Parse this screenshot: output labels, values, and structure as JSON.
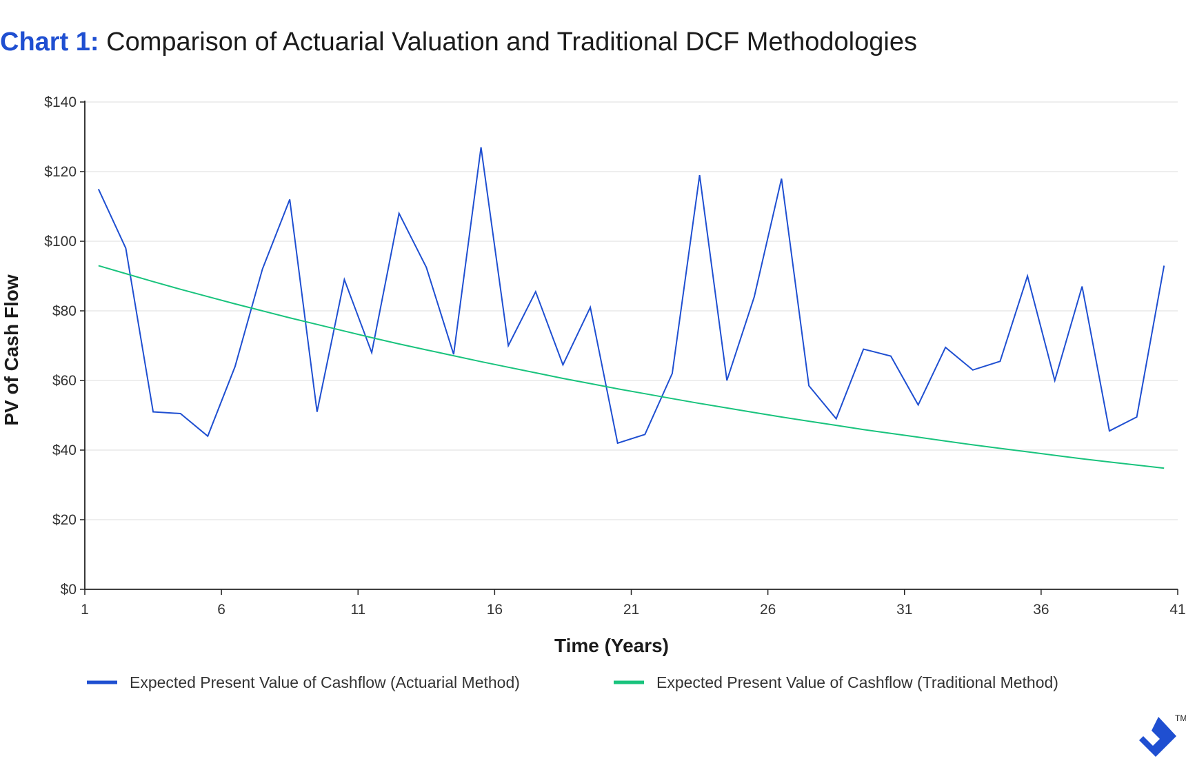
{
  "title": {
    "prefix": "Chart 1:",
    "text": "Comparison of Actuarial Valuation and Traditional DCF Methodologies"
  },
  "colors": {
    "actuarial": "#1f4fd1",
    "traditional": "#19c37d",
    "grid": "#e4e4e4",
    "axis": "#222222",
    "title_accent": "#1f4fd1"
  },
  "logo": {
    "icon": "toptal-logo-icon",
    "trademark": "TM"
  },
  "chart_data": {
    "type": "line",
    "xlabel": "Time (Years)",
    "ylabel": "PV of Cash Flow",
    "xlim": [
      1,
      41
    ],
    "ylim": [
      0,
      140
    ],
    "x_ticks": [
      1,
      6,
      11,
      16,
      21,
      26,
      31,
      36,
      41
    ],
    "x_tick_labels": [
      "1",
      "6",
      "11",
      "16",
      "21",
      "26",
      "31",
      "36",
      "41"
    ],
    "y_ticks": [
      0,
      20,
      40,
      60,
      80,
      100,
      120,
      140
    ],
    "y_tick_labels": [
      "$0",
      "$20",
      "$40",
      "$60",
      "$80",
      "$100",
      "$120",
      "$140"
    ],
    "grid": true,
    "legend_position": "bottom",
    "x": [
      1.5,
      2.5,
      3.5,
      4.5,
      5.5,
      6.5,
      7.5,
      8.5,
      9.5,
      10.5,
      11.5,
      12.5,
      13.5,
      14.5,
      15.5,
      16.5,
      17.5,
      18.5,
      19.5,
      20.5,
      21.5,
      22.5,
      23.5,
      24.5,
      25.5,
      26.5,
      27.5,
      28.5,
      29.5,
      30.5,
      31.5,
      32.5,
      33.5,
      34.5,
      35.5,
      36.5,
      37.5,
      38.5,
      39.5,
      40.5
    ],
    "series": [
      {
        "name": "Expected Present Value of Cashflow (Actuarial Method)",
        "values": [
          115,
          98,
          51,
          50.5,
          44,
          64,
          92,
          112,
          51,
          89,
          68,
          108,
          92.5,
          67.5,
          127,
          70,
          85.5,
          64.5,
          81,
          42,
          44.5,
          62,
          119,
          60,
          84,
          118,
          58.5,
          49,
          69,
          67,
          53,
          69.5,
          63,
          65.5,
          90,
          60,
          87,
          45.5,
          49.5,
          93
        ]
      },
      {
        "name": "Expected Present Value of Cashflow (Traditional Method)",
        "values": [
          93,
          90.7,
          88.4,
          86.2,
          84.1,
          82,
          80,
          78,
          76.1,
          74.2,
          72.3,
          70.5,
          68.8,
          67.1,
          65.4,
          63.8,
          62.2,
          60.6,
          59.1,
          57.6,
          56.2,
          54.8,
          53.4,
          52.1,
          50.8,
          49.5,
          48.3,
          47.1,
          45.9,
          44.8,
          43.7,
          42.6,
          41.5,
          40.5,
          39.5,
          38.5,
          37.5,
          36.6,
          35.7,
          34.8
        ]
      }
    ]
  }
}
